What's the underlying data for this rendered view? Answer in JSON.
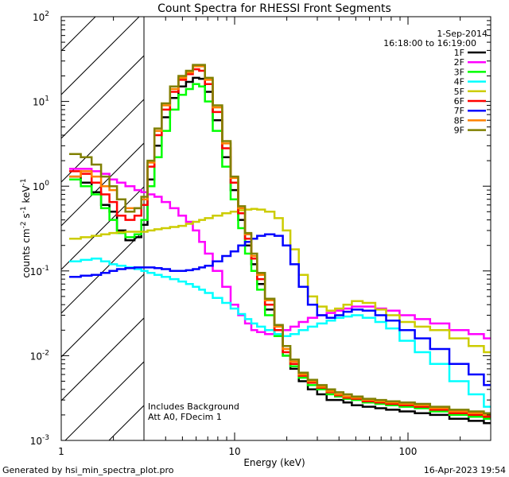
{
  "chart_data": {
    "type": "line",
    "title": "Count Spectra for RHESSI Front Segments",
    "xlabel": "Energy (keV)",
    "ylabel_parts": {
      "base": "counts cm",
      "e1": "-2",
      "mid": " s",
      "e2": "-1",
      "tail": " keV",
      "e3": "-1"
    },
    "x_scale": "log",
    "y_scale": "log",
    "xlim": [
      1,
      300
    ],
    "ylim": [
      0.001,
      100
    ],
    "x_ticks": [
      {
        "v": 1,
        "label": "1"
      },
      {
        "v": 10,
        "label": "10"
      },
      {
        "v": 100,
        "label": "100"
      }
    ],
    "y_ticks": [
      {
        "v": 0.001,
        "base": "10",
        "exp": "-3"
      },
      {
        "v": 0.01,
        "base": "10",
        "exp": "-2"
      },
      {
        "v": 0.1,
        "base": "10",
        "exp": "-1"
      },
      {
        "v": 1,
        "base": "10",
        "exp": "0"
      },
      {
        "v": 10,
        "base": "10",
        "exp": "1"
      },
      {
        "v": 100,
        "base": "10",
        "exp": "2"
      }
    ],
    "date": "1-Sep-2014",
    "time_range": "16:18:00 to 16:19:00",
    "hatched_region_max_keV": 3,
    "annotation_lines": [
      "Includes Background",
      "Att A0, FDecim 1"
    ],
    "footer_left": "Generated by hsi_min_spectra_plot.pro",
    "footer_right": "16-Apr-2023 19:54",
    "energies": [
      1.2,
      1.4,
      1.6,
      1.8,
      2.0,
      2.2,
      2.5,
      2.8,
      3.0,
      3.3,
      3.6,
      4.0,
      4.5,
      5.0,
      5.5,
      6.0,
      6.5,
      7.0,
      8.0,
      9.0,
      10.0,
      11.0,
      12.0,
      13.0,
      14.0,
      16.0,
      18.0,
      20.0,
      22.0,
      25.0,
      28.0,
      32.0,
      36.0,
      40.0,
      45.0,
      50.0,
      60.0,
      70.0,
      80.0,
      100.0,
      120.0,
      150.0,
      200.0,
      250.0,
      300.0
    ],
    "series": [
      {
        "name": "1F",
        "color": "#000000",
        "values": [
          1.3,
          1.1,
          0.85,
          0.6,
          0.5,
          0.3,
          0.23,
          0.25,
          0.35,
          1.2,
          3.0,
          6.5,
          11.0,
          15.0,
          17.0,
          19.0,
          18.5,
          13.0,
          6.0,
          2.2,
          0.9,
          0.4,
          0.2,
          0.12,
          0.07,
          0.035,
          0.018,
          0.01,
          0.007,
          0.005,
          0.004,
          0.0035,
          0.003,
          0.003,
          0.0028,
          0.0026,
          0.0025,
          0.0024,
          0.0023,
          0.0022,
          0.0021,
          0.002,
          0.0018,
          0.0017,
          0.0016
        ]
      },
      {
        "name": "2F",
        "color": "#ff00ff",
        "values": [
          1.6,
          1.6,
          1.5,
          1.4,
          1.2,
          1.1,
          1.0,
          0.9,
          0.85,
          0.8,
          0.75,
          0.65,
          0.55,
          0.45,
          0.38,
          0.3,
          0.22,
          0.16,
          0.1,
          0.065,
          0.04,
          0.03,
          0.024,
          0.02,
          0.019,
          0.018,
          0.018,
          0.02,
          0.022,
          0.025,
          0.028,
          0.03,
          0.032,
          0.034,
          0.036,
          0.038,
          0.038,
          0.036,
          0.034,
          0.03,
          0.027,
          0.024,
          0.02,
          0.018,
          0.016
        ]
      },
      {
        "name": "3F",
        "color": "#00ff00",
        "values": [
          1.2,
          1.0,
          0.8,
          0.55,
          0.4,
          0.28,
          0.25,
          0.27,
          0.4,
          1.0,
          2.2,
          4.5,
          8.0,
          12.0,
          14.0,
          16.0,
          15.0,
          10.0,
          4.5,
          1.7,
          0.7,
          0.32,
          0.16,
          0.1,
          0.06,
          0.03,
          0.017,
          0.01,
          0.0075,
          0.0055,
          0.0045,
          0.004,
          0.0035,
          0.0033,
          0.0031,
          0.003,
          0.0028,
          0.0027,
          0.0026,
          0.0025,
          0.0024,
          0.0022,
          0.002,
          0.0019,
          0.0018
        ]
      },
      {
        "name": "4F",
        "color": "#00ffff",
        "values": [
          0.13,
          0.135,
          0.14,
          0.13,
          0.12,
          0.115,
          0.11,
          0.105,
          0.1,
          0.095,
          0.09,
          0.085,
          0.08,
          0.075,
          0.07,
          0.065,
          0.06,
          0.055,
          0.048,
          0.042,
          0.036,
          0.031,
          0.027,
          0.024,
          0.022,
          0.02,
          0.018,
          0.017,
          0.018,
          0.02,
          0.022,
          0.024,
          0.026,
          0.028,
          0.029,
          0.03,
          0.028,
          0.025,
          0.021,
          0.015,
          0.011,
          0.008,
          0.005,
          0.0035,
          0.0025
        ]
      },
      {
        "name": "5F",
        "color": "#cccc00",
        "values": [
          0.24,
          0.25,
          0.26,
          0.27,
          0.28,
          0.285,
          0.29,
          0.29,
          0.29,
          0.3,
          0.31,
          0.32,
          0.33,
          0.34,
          0.36,
          0.38,
          0.4,
          0.42,
          0.45,
          0.48,
          0.5,
          0.52,
          0.53,
          0.54,
          0.53,
          0.5,
          0.42,
          0.3,
          0.18,
          0.09,
          0.05,
          0.038,
          0.034,
          0.036,
          0.04,
          0.044,
          0.042,
          0.035,
          0.03,
          0.025,
          0.022,
          0.02,
          0.016,
          0.013,
          0.011
        ]
      },
      {
        "name": "6F",
        "color": "#ff0000",
        "values": [
          1.5,
          1.4,
          1.1,
          0.8,
          0.65,
          0.45,
          0.4,
          0.45,
          0.6,
          1.7,
          4.0,
          8.0,
          13.0,
          18.0,
          21.0,
          24.0,
          23.0,
          16.0,
          7.5,
          2.8,
          1.1,
          0.48,
          0.24,
          0.14,
          0.08,
          0.04,
          0.02,
          0.011,
          0.008,
          0.0058,
          0.0048,
          0.0042,
          0.0037,
          0.0034,
          0.0032,
          0.0031,
          0.0029,
          0.0028,
          0.0027,
          0.0026,
          0.0025,
          0.0023,
          0.0021,
          0.002,
          0.0019
        ]
      },
      {
        "name": "7F",
        "color": "#0000ff",
        "values": [
          0.085,
          0.088,
          0.09,
          0.095,
          0.1,
          0.105,
          0.108,
          0.11,
          0.11,
          0.11,
          0.108,
          0.105,
          0.1,
          0.1,
          0.102,
          0.105,
          0.11,
          0.115,
          0.13,
          0.15,
          0.17,
          0.2,
          0.22,
          0.24,
          0.26,
          0.27,
          0.26,
          0.2,
          0.12,
          0.065,
          0.04,
          0.03,
          0.028,
          0.03,
          0.033,
          0.035,
          0.034,
          0.03,
          0.026,
          0.02,
          0.016,
          0.012,
          0.008,
          0.006,
          0.0045
        ]
      },
      {
        "name": "8F",
        "color": "#ff8000",
        "values": [
          1.3,
          1.5,
          1.3,
          1.0,
          0.9,
          0.7,
          0.55,
          0.55,
          0.7,
          1.9,
          4.5,
          9.0,
          14.0,
          19.0,
          22.0,
          26.0,
          26.0,
          18.0,
          8.5,
          3.2,
          1.25,
          0.55,
          0.27,
          0.15,
          0.09,
          0.045,
          0.022,
          0.012,
          0.0085,
          0.006,
          0.005,
          0.0043,
          0.0038,
          0.0035,
          0.0033,
          0.0032,
          0.003,
          0.0029,
          0.0028,
          0.0027,
          0.0026,
          0.0024,
          0.0022,
          0.0021,
          0.002
        ]
      },
      {
        "name": "9F",
        "color": "#808000",
        "values": [
          2.4,
          2.2,
          1.8,
          1.3,
          1.0,
          0.7,
          0.5,
          0.55,
          0.75,
          2.0,
          4.8,
          9.5,
          15.0,
          20.0,
          23.0,
          27.0,
          27.0,
          19.0,
          9.0,
          3.4,
          1.3,
          0.58,
          0.28,
          0.16,
          0.095,
          0.047,
          0.023,
          0.013,
          0.009,
          0.0063,
          0.0052,
          0.0045,
          0.004,
          0.0037,
          0.0035,
          0.0033,
          0.0031,
          0.003,
          0.0029,
          0.0028,
          0.0027,
          0.0025,
          0.0023,
          0.0022,
          0.0021
        ]
      }
    ]
  }
}
